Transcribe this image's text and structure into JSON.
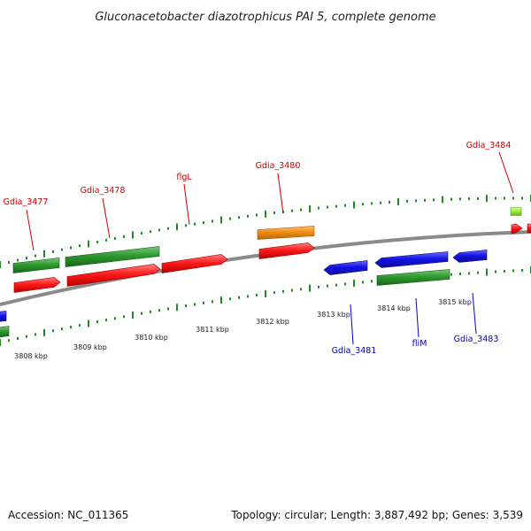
{
  "title": "Gluconacetobacter diazotrophicus PAI 5, complete genome",
  "footer": {
    "accession": "Accession: NC_011365",
    "topology": "Topology: circular; Length: 3,887,492 bp; Genes: 3,539"
  },
  "ruler_labels": [
    "3808 kbp",
    "3809 kbp",
    "3810 kbp",
    "3811 kbp",
    "3812 kbp",
    "3813 kbp",
    "3814 kbp",
    "3815 kbp"
  ],
  "gene_labels_top": [
    "Gdia_3477",
    "Gdia_3478",
    "flgL",
    "Gdia_3480",
    "Gdia_3484"
  ],
  "gene_labels_bottom": [
    "Gdia_3481",
    "fliM",
    "Gdia_3483"
  ],
  "colors": {
    "cds_red": "#ff1a1a",
    "gene_green": "#2e9a2e",
    "gene_blue": "#1414e6",
    "gene_orange": "#f08c14",
    "gene_lightgreen": "#99ee33",
    "tick_green": "#1e8c1e",
    "label_red": "#cc0000",
    "label_blue": "#0000cc",
    "backbone": "#7a7a7a"
  }
}
